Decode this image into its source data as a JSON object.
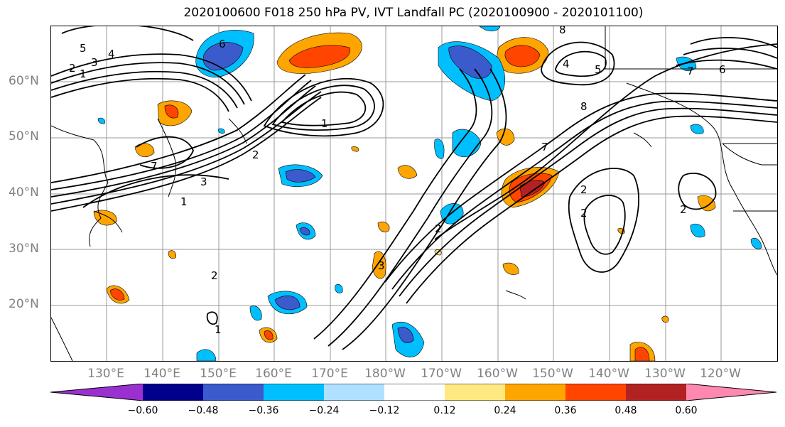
{
  "title": "2020100600 F018 250 hPa PV, IVT Landfall PC (2020100900 - 2020101100)",
  "latitude_labels": [
    "60°N",
    "50°N",
    "40°N",
    "30°N",
    "20°N"
  ],
  "longitude_labels": [
    "130°E",
    "140°E",
    "150°E",
    "160°E",
    "170°E",
    "180°W",
    "170°W",
    "160°W",
    "150°W",
    "140°W",
    "130°W",
    "120°W"
  ],
  "contour_labels": [
    "5",
    "4",
    "3",
    "2",
    "1",
    "6",
    "1",
    "2",
    "3",
    "1",
    "7",
    "8",
    "5",
    "4",
    "7",
    "6",
    "8",
    "7",
    "2",
    "2",
    "2",
    "3",
    "2",
    "2",
    "1"
  ],
  "colorbar": {
    "ticks": [
      "−0.60",
      "−0.48",
      "−0.36",
      "−0.24",
      "−0.12",
      "0.12",
      "0.24",
      "0.36",
      "0.48",
      "0.60"
    ],
    "colors": [
      "#9b30d0",
      "#00008b",
      "#3b5bcc",
      "#00bfff",
      "#b0e0ff",
      "#ffffff",
      "#ffe880",
      "#ffa500",
      "#ff4500",
      "#b22222",
      "#ff88b0"
    ]
  },
  "colors": {
    "land_outline": "#000000",
    "grid": "#999999",
    "contours": "#000000"
  }
}
